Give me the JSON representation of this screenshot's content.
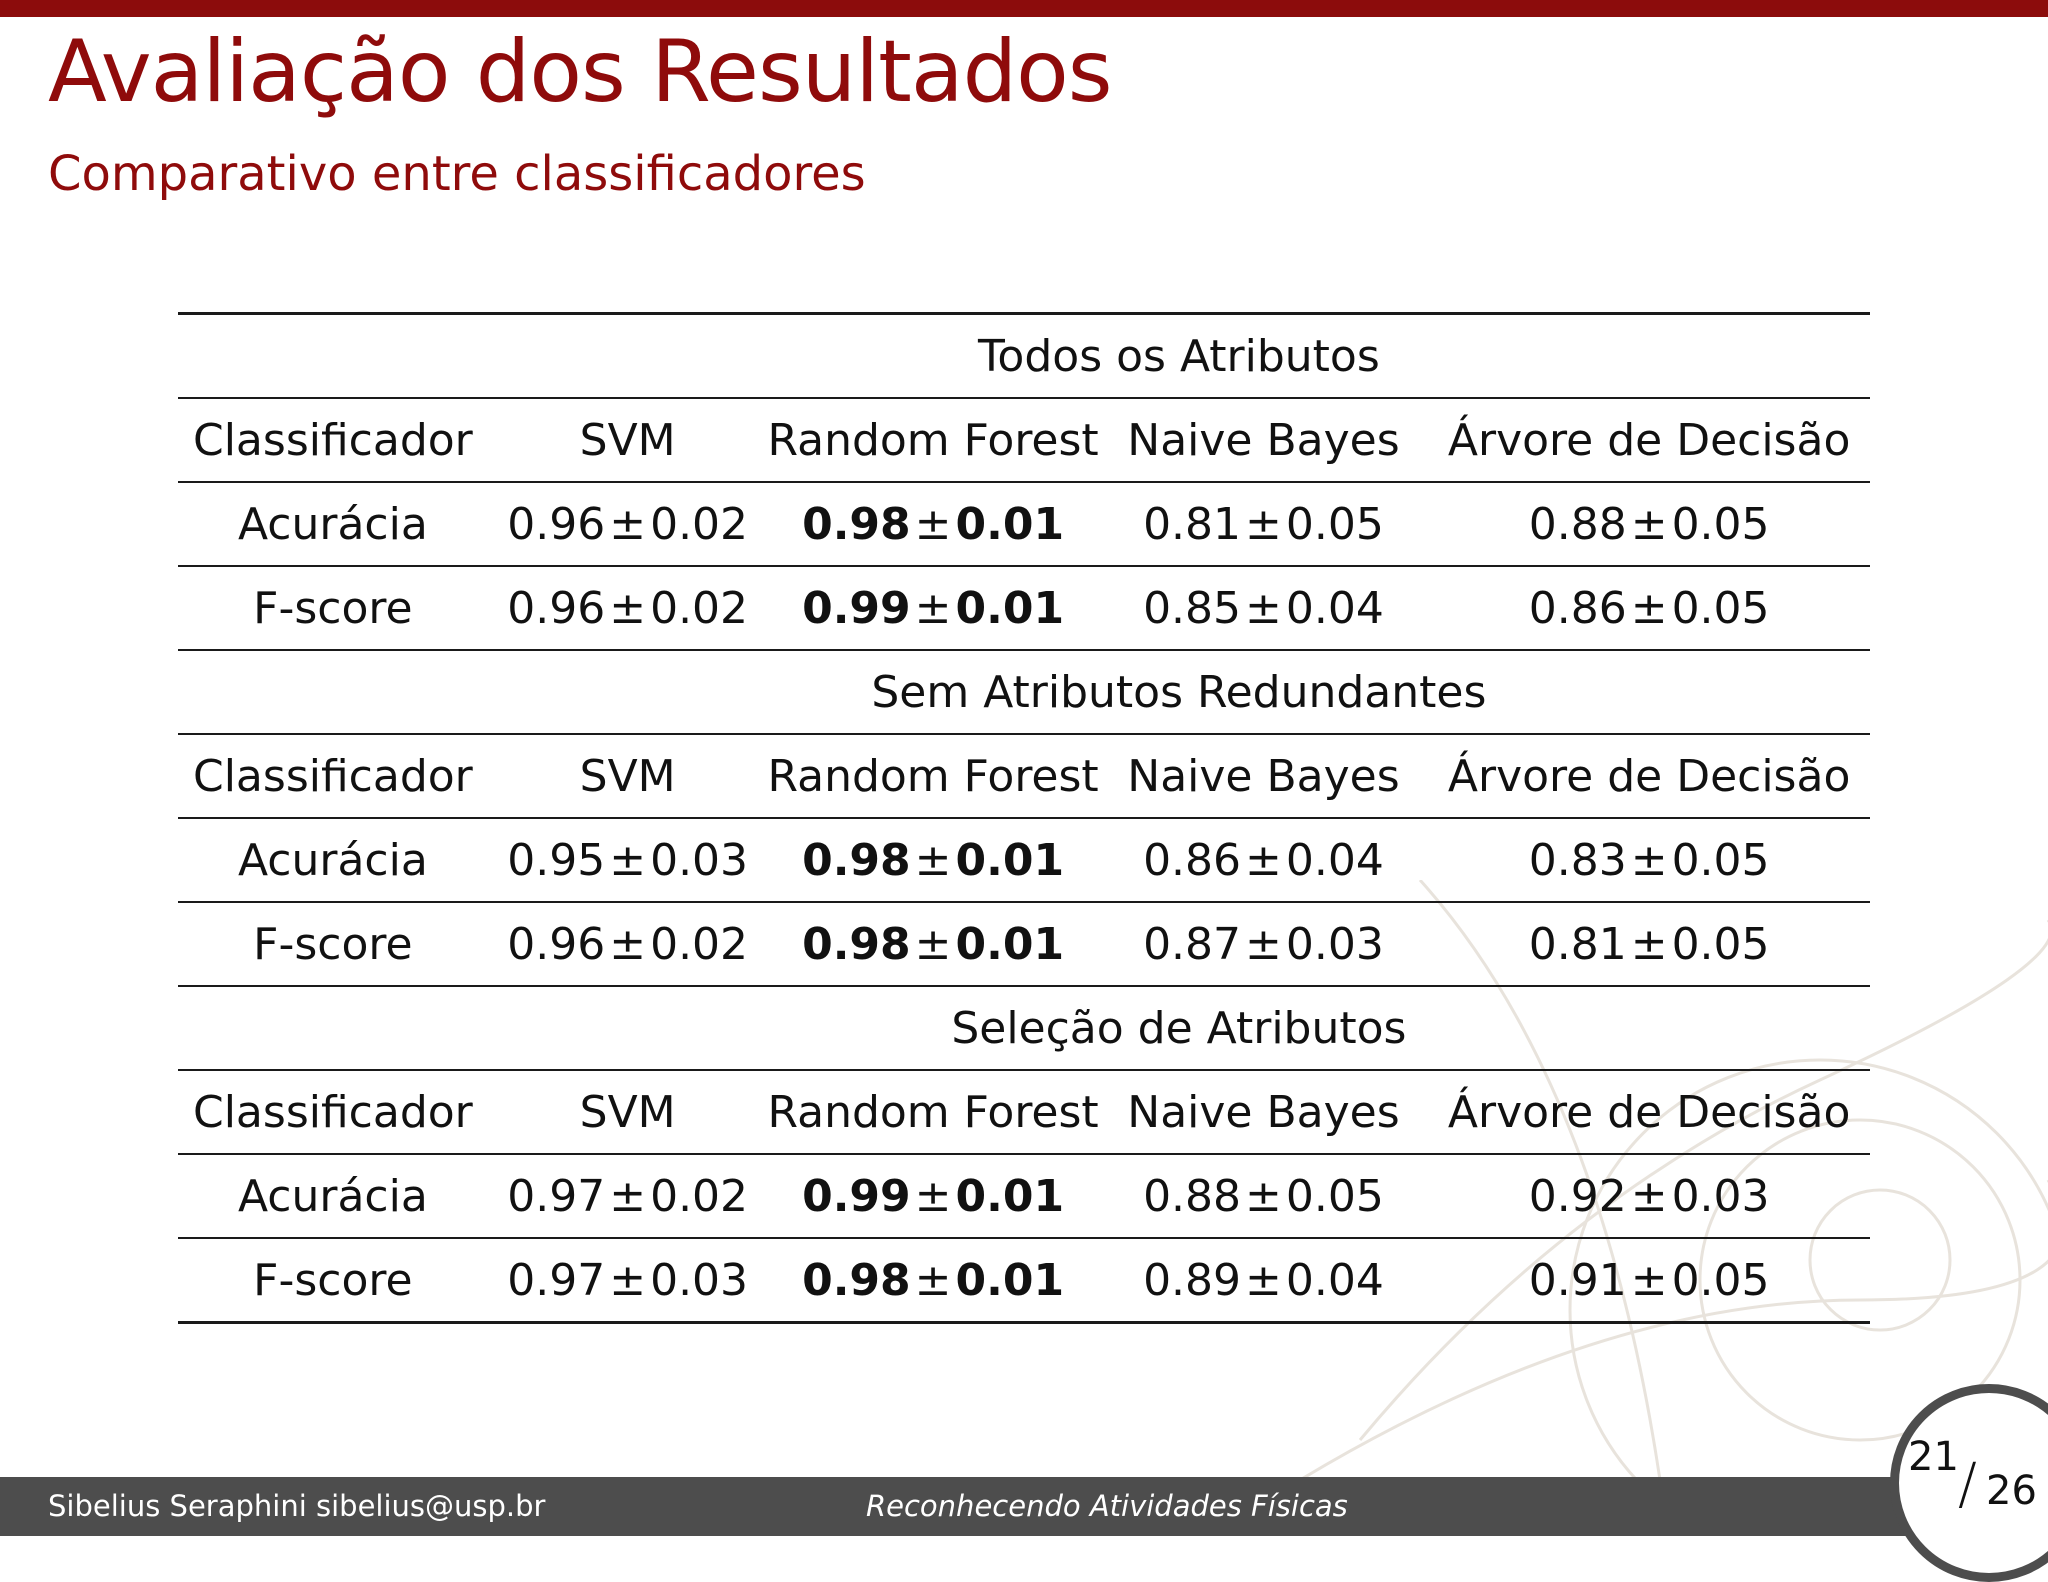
{
  "slide": {
    "title": "Avaliação dos Resultados",
    "subtitle": "Comparativo entre classificadores"
  },
  "table": {
    "sections": [
      {
        "heading": "Todos os Atributos",
        "header": [
          "Classificador",
          "SVM",
          "Random Forest",
          "Naive Bayes",
          "Árvore de Decisão"
        ],
        "rows": [
          {
            "label": "Acurácia",
            "values": [
              [
                "0.96",
                "0.02"
              ],
              [
                "0.98",
                "0.01"
              ],
              [
                "0.81",
                "0.05"
              ],
              [
                "0.88",
                "0.05"
              ]
            ]
          },
          {
            "label": "F-score",
            "values": [
              [
                "0.96",
                "0.02"
              ],
              [
                "0.99",
                "0.01"
              ],
              [
                "0.85",
                "0.04"
              ],
              [
                "0.86",
                "0.05"
              ]
            ]
          }
        ]
      },
      {
        "heading": "Sem Atributos Redundantes",
        "header": [
          "Classificador",
          "SVM",
          "Random Forest",
          "Naive Bayes",
          "Árvore de Decisão"
        ],
        "rows": [
          {
            "label": "Acurácia",
            "values": [
              [
                "0.95",
                "0.03"
              ],
              [
                "0.98",
                "0.01"
              ],
              [
                "0.86",
                "0.04"
              ],
              [
                "0.83",
                "0.05"
              ]
            ]
          },
          {
            "label": "F-score",
            "values": [
              [
                "0.96",
                "0.02"
              ],
              [
                "0.98",
                "0.01"
              ],
              [
                "0.87",
                "0.03"
              ],
              [
                "0.81",
                "0.05"
              ]
            ]
          }
        ]
      },
      {
        "heading": "Seleção de Atributos",
        "header": [
          "Classificador",
          "SVM",
          "Random Forest",
          "Naive Bayes",
          "Árvore de Decisão"
        ],
        "rows": [
          {
            "label": "Acurácia",
            "values": [
              [
                "0.97",
                "0.02"
              ],
              [
                "0.99",
                "0.01"
              ],
              [
                "0.88",
                "0.05"
              ],
              [
                "0.92",
                "0.03"
              ]
            ]
          },
          {
            "label": "F-score",
            "values": [
              [
                "0.97",
                "0.03"
              ],
              [
                "0.98",
                "0.01"
              ],
              [
                "0.89",
                "0.04"
              ],
              [
                "0.91",
                "0.05"
              ]
            ]
          }
        ]
      }
    ],
    "plus_minus": "±",
    "bold_column": 1
  },
  "footer": {
    "author": "Sibelius Seraphini",
    "email": "sibelius@usp.br",
    "talk_title": "Reconhecendo Atividades Físicas",
    "page_current": "21",
    "page_slash": "/",
    "page_total": "26"
  },
  "colors": {
    "accent": "#8f0b0b",
    "top_bar": "#8c0c0c",
    "footer_bg": "#4d4d4d"
  }
}
